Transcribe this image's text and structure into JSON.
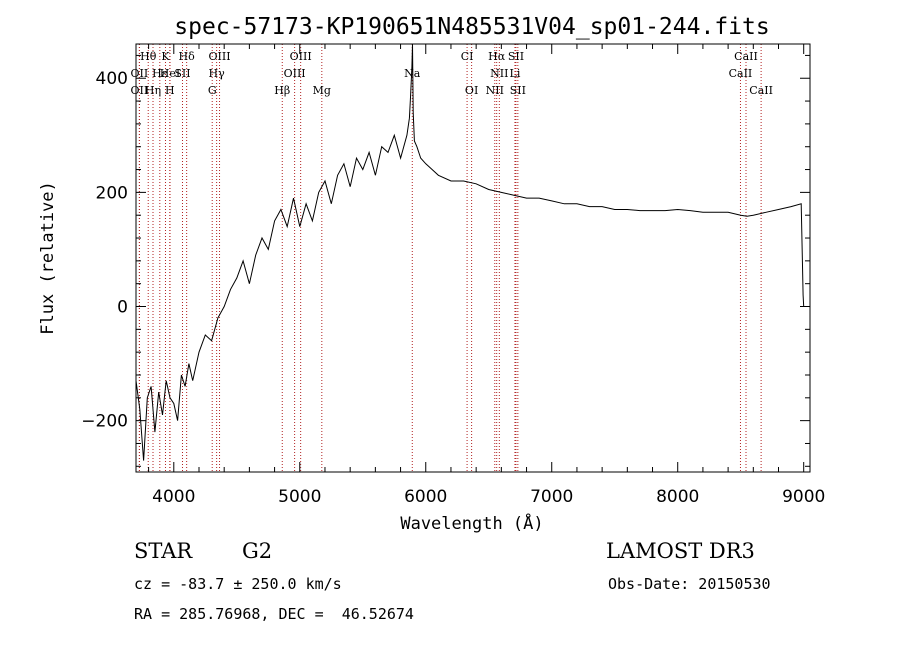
{
  "chart_data": {
    "type": "line",
    "title": "spec-57173-KP190651N485531V04_sp01-244.fits",
    "xlabel": "Wavelength (Å)",
    "ylabel": "Flux (relative)",
    "xlim": [
      3700,
      9050
    ],
    "ylim": [
      -290,
      460
    ],
    "xticks": [
      4000,
      5000,
      6000,
      7000,
      8000,
      9000
    ],
    "yticks": [
      -200,
      0,
      200,
      400
    ],
    "grid": false,
    "series": [
      {
        "name": "spectrum",
        "x": [
          3700,
          3730,
          3760,
          3790,
          3820,
          3850,
          3880,
          3910,
          3940,
          3970,
          4000,
          4030,
          4060,
          4090,
          4120,
          4150,
          4200,
          4250,
          4300,
          4350,
          4400,
          4450,
          4500,
          4550,
          4600,
          4650,
          4700,
          4750,
          4800,
          4850,
          4900,
          4950,
          5000,
          5050,
          5100,
          5150,
          5200,
          5250,
          5300,
          5350,
          5400,
          5450,
          5500,
          5550,
          5600,
          5650,
          5700,
          5750,
          5800,
          5850,
          5870,
          5880,
          5890,
          5895,
          5900,
          5910,
          5930,
          5960,
          6000,
          6050,
          6100,
          6200,
          6300,
          6400,
          6500,
          6600,
          6700,
          6800,
          6900,
          7000,
          7100,
          7200,
          7300,
          7400,
          7500,
          7600,
          7700,
          7800,
          7900,
          8000,
          8100,
          8200,
          8300,
          8400,
          8500,
          8550,
          8600,
          8700,
          8800,
          8900,
          8980,
          8990,
          8995,
          9000
        ],
        "y": [
          -130,
          -180,
          -270,
          -160,
          -140,
          -220,
          -150,
          -190,
          -130,
          -160,
          -170,
          -200,
          -120,
          -140,
          -100,
          -130,
          -80,
          -50,
          -60,
          -20,
          0,
          30,
          50,
          80,
          40,
          90,
          120,
          100,
          150,
          170,
          140,
          190,
          140,
          180,
          150,
          200,
          220,
          180,
          230,
          250,
          210,
          260,
          240,
          270,
          230,
          280,
          270,
          300,
          260,
          300,
          330,
          370,
          420,
          460,
          340,
          290,
          280,
          260,
          250,
          240,
          230,
          220,
          220,
          215,
          205,
          200,
          195,
          190,
          190,
          185,
          180,
          180,
          175,
          175,
          170,
          170,
          168,
          168,
          168,
          170,
          168,
          165,
          165,
          165,
          160,
          158,
          160,
          165,
          170,
          175,
          180,
          80,
          20,
          0
        ]
      }
    ],
    "annotations": [
      {
        "label": "Hθ",
        "x": 3797,
        "row": 1
      },
      {
        "label": "K",
        "x": 3934,
        "row": 1
      },
      {
        "label": "Hδ",
        "x": 4102,
        "row": 1
      },
      {
        "label": "OIII",
        "x": 4363,
        "row": 1
      },
      {
        "label": "OIII",
        "x": 5007,
        "row": 1
      },
      {
        "label": "CI",
        "x": 6328,
        "row": 1
      },
      {
        "label": "Hα",
        "x": 6563,
        "row": 1
      },
      {
        "label": "SII",
        "x": 6716,
        "row": 1
      },
      {
        "label": "CaII",
        "x": 8542,
        "row": 1
      },
      {
        "label": "OII",
        "x": 3727,
        "row": 2
      },
      {
        "label": "Hε",
        "x": 3889,
        "row": 2
      },
      {
        "label": "HeI",
        "x": 3970,
        "row": 2
      },
      {
        "label": "SII",
        "x": 4069,
        "row": 2
      },
      {
        "label": "Hγ",
        "x": 4340,
        "row": 2
      },
      {
        "label": "OIII",
        "x": 4959,
        "row": 2
      },
      {
        "label": "Na",
        "x": 5893,
        "row": 2
      },
      {
        "label": "NII",
        "x": 6584,
        "row": 2
      },
      {
        "label": "Li",
        "x": 6708,
        "row": 2
      },
      {
        "label": "CaII",
        "x": 8498,
        "row": 2
      },
      {
        "label": "OII",
        "x": 3727,
        "row": 3
      },
      {
        "label": "Hη",
        "x": 3835,
        "row": 3
      },
      {
        "label": "H",
        "x": 3968,
        "row": 3
      },
      {
        "label": "G",
        "x": 4305,
        "row": 3
      },
      {
        "label": "Hβ",
        "x": 4861,
        "row": 3
      },
      {
        "label": "Mg",
        "x": 5175,
        "row": 3
      },
      {
        "label": "OI",
        "x": 6364,
        "row": 3
      },
      {
        "label": "NII",
        "x": 6548,
        "row": 3
      },
      {
        "label": "SII",
        "x": 6731,
        "row": 3
      },
      {
        "label": "CaII",
        "x": 8662,
        "row": 3
      }
    ]
  },
  "info": {
    "class": "STAR",
    "subclass": "G2",
    "survey": "LAMOST DR3",
    "cz": "cz = -83.7 ± 250.0 km/s",
    "obs_date": "Obs-Date: 20150530",
    "coords": "RA = 285.76968, DEC =  46.52674"
  }
}
